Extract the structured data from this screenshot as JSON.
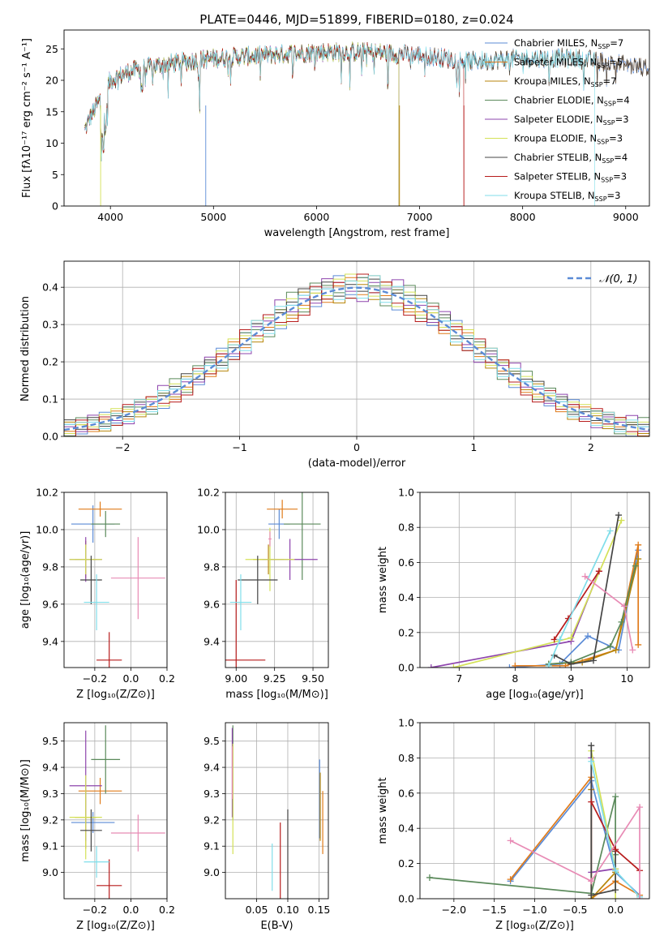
{
  "chart_data": [
    {
      "id": "spectrum",
      "type": "line",
      "title": "PLATE=0446, MJD=51899, FIBERID=0180, z=0.024",
      "xlabel": "wavelength [Angstrom, rest frame]",
      "ylabel": "Flux [fλ10⁻¹⁷ erg cm⁻² s⁻¹ A⁻¹]",
      "xlim": [
        3550,
        9230
      ],
      "ylim": [
        0,
        28
      ],
      "xticks": [
        4000,
        5000,
        6000,
        7000,
        8000,
        9000
      ],
      "yticks": [
        0,
        5,
        10,
        15,
        20,
        25
      ],
      "legend_position": "top-right",
      "shape": {
        "x": [
          3750,
          3800,
          3900,
          4000,
          4200,
          4500,
          5000,
          5500,
          6000,
          6500,
          7000,
          7500,
          8000,
          8500,
          9000,
          9200
        ],
        "y": [
          12,
          14,
          17,
          20,
          21.5,
          22.5,
          23.5,
          24,
          24.5,
          24.5,
          24,
          23,
          23.5,
          23.5,
          22.5,
          22
        ]
      },
      "series": [
        {
          "name": "Chabrier MILES, N",
          "sub": "SSP",
          "suffix": "=7",
          "color": "#5b8bd6",
          "x_end": 9230
        },
        {
          "name": "Salpeter MILES, N",
          "sub": "SSP",
          "suffix": "=5",
          "color": "#e07b1a",
          "x_end": 9230
        },
        {
          "name": "Kroupa MILES, N",
          "sub": "SSP",
          "suffix": "=7",
          "color": "#b8860b",
          "x_end": 6800
        },
        {
          "name": "Chabrier ELODIE, N",
          "sub": "SSP",
          "suffix": "=4",
          "color": "#5b8a5b",
          "x_end": 6800
        },
        {
          "name": "Salpeter ELODIE, N",
          "sub": "SSP",
          "suffix": "=3",
          "color": "#8e44ad",
          "x_end": 6800
        },
        {
          "name": "Kroupa ELODIE, N",
          "sub": "SSP",
          "suffix": "=3",
          "color": "#d4e157",
          "x_end": 6800
        },
        {
          "name": "Chabrier STELIB, N",
          "sub": "SSP",
          "suffix": "=4",
          "color": "#444444",
          "x_end": 9230
        },
        {
          "name": "Salpeter STELIB, N",
          "sub": "SSP",
          "suffix": "=3",
          "color": "#b71c1c",
          "x_end": 7430
        },
        {
          "name": "Kroupa STELIB, N",
          "sub": "SSP",
          "suffix": "=3",
          "color": "#80deea",
          "x_end": 8700
        }
      ]
    },
    {
      "id": "residuals",
      "type": "bar",
      "xlabel": "(data-model)/error",
      "ylabel": "Normed distribution",
      "xlim": [
        -2.5,
        2.5
      ],
      "ylim": [
        0,
        0.47
      ],
      "xticks": [
        -2,
        -1,
        0,
        1,
        2
      ],
      "xtick_labels": [
        "−2",
        "−1",
        "0",
        "1",
        "2"
      ],
      "yticks": [
        0.0,
        0.1,
        0.2,
        0.3,
        0.4
      ],
      "bin_width": 0.1,
      "legend_label": "𝒩(0, 1)",
      "legend_position": "top-right",
      "deviations": [
        [
          0.02,
          -0.03,
          0.01,
          0.04,
          -0.02,
          0.03,
          -0.01,
          0.02,
          -0.04,
          0.01
        ],
        [
          -0.01,
          0.02,
          -0.03,
          0.01,
          0.03,
          -0.02,
          0.04,
          -0.01,
          0.02,
          -0.03
        ],
        [
          0.03,
          0.01,
          -0.02,
          -0.04,
          0.02,
          0.01,
          -0.03,
          0.03,
          0.01,
          -0.02
        ],
        [
          -0.03,
          0.04,
          0.02,
          -0.01,
          -0.03,
          0.03,
          0.01,
          -0.04,
          0.02,
          0.05
        ],
        [
          0.01,
          -0.02,
          0.04,
          0.02,
          -0.01,
          -0.04,
          0.02,
          0.01,
          0.05,
          -0.01
        ],
        [
          -0.02,
          0.01,
          -0.01,
          0.03,
          0.04,
          0.02,
          -0.02,
          0.02,
          -0.03,
          0.03
        ],
        [
          0.04,
          -0.01,
          0.03,
          -0.02,
          0.01,
          -0.01,
          0.03,
          -0.02,
          0.01,
          0.02
        ],
        [
          -0.04,
          0.03,
          -0.02,
          0.02,
          -0.03,
          0.04,
          -0.01,
          0.03,
          -0.02,
          -0.04
        ],
        [
          0.02,
          0.02,
          0.01,
          -0.03,
          0.02,
          -0.03,
          0.04,
          -0.03,
          0.03,
          0.01
        ]
      ]
    },
    {
      "id": "age-vs-Z",
      "type": "scatter",
      "xlabel": "Z [log₁₀(Z/Z⊙)]",
      "ylabel": "age  [log₁₀(age/yr)]",
      "xlim": [
        -0.37,
        0.2
      ],
      "ylim": [
        9.26,
        10.2
      ],
      "xticks": [
        -0.2,
        0.0,
        0.2
      ],
      "xtick_labels": [
        "−0.2",
        "0.0",
        "0.2"
      ],
      "yticks": [
        9.4,
        9.6,
        9.8,
        10.0,
        10.2
      ],
      "points": [
        {
          "x": -0.21,
          "xerr": 0.12,
          "y": 10.03,
          "yerr": 0.1,
          "color": "#5b8bd6"
        },
        {
          "x": -0.17,
          "xerr": 0.12,
          "y": 10.11,
          "yerr": 0.04,
          "color": "#e07b1a"
        },
        {
          "x": -0.25,
          "xerr": 0.06,
          "y": 9.84,
          "yerr": 0.1,
          "color": "#b8860b"
        },
        {
          "x": -0.14,
          "xerr": 0.08,
          "y": 10.03,
          "yerr": 0.07,
          "color": "#5b8a5b"
        },
        {
          "x": -0.25,
          "xerr": 0.09,
          "y": 9.84,
          "yerr": 0.12,
          "color": "#8e44ad"
        },
        {
          "x": -0.25,
          "xerr": 0.09,
          "y": 9.84,
          "yerr": 0.08,
          "color": "#d4e157"
        },
        {
          "x": -0.22,
          "xerr": 0.06,
          "y": 9.73,
          "yerr": 0.13,
          "color": "#444444"
        },
        {
          "x": -0.12,
          "xerr": 0.07,
          "y": 9.3,
          "yerr": 0.15,
          "color": "#b71c1c"
        },
        {
          "x": -0.19,
          "xerr": 0.07,
          "y": 9.61,
          "yerr": 0.15,
          "color": "#80deea"
        },
        {
          "x": 0.04,
          "xerr": 0.15,
          "y": 9.74,
          "yerr": 0.22,
          "color": "#e88bb5"
        }
      ]
    },
    {
      "id": "age-vs-mass",
      "type": "scatter",
      "xlabel": "mass [log₁₀(M/M⊙)]",
      "xlim": [
        8.93,
        9.6
      ],
      "ylim": [
        9.26,
        10.2
      ],
      "xticks": [
        9.0,
        9.25,
        9.5
      ],
      "xtick_labels": [
        "9.00",
        "9.25",
        "9.50"
      ],
      "yticks": [
        9.4,
        9.6,
        9.8,
        10.0,
        10.2
      ],
      "points": [
        {
          "x": 9.28,
          "xerr": 0.07,
          "y": 10.03,
          "yerr": 0.08,
          "color": "#5b8bd6"
        },
        {
          "x": 9.3,
          "xerr": 0.1,
          "y": 10.11,
          "yerr": 0.05,
          "color": "#e07b1a"
        },
        {
          "x": 9.21,
          "xerr": 0.1,
          "y": 9.84,
          "yerr": 0.08,
          "color": "#b8860b"
        },
        {
          "x": 9.43,
          "xerr": 0.12,
          "y": 10.03,
          "yerr": 0.3,
          "color": "#5b8a5b"
        },
        {
          "x": 9.35,
          "xerr": 0.18,
          "y": 9.84,
          "yerr": 0.11,
          "color": "#8e44ad"
        },
        {
          "x": 9.22,
          "xerr": 0.16,
          "y": 9.84,
          "yerr": 0.17,
          "color": "#d4e157"
        },
        {
          "x": 9.14,
          "xerr": 0.13,
          "y": 9.73,
          "yerr": 0.13,
          "color": "#444444"
        },
        {
          "x": 9.0,
          "xerr": 0.19,
          "y": 9.3,
          "yerr": 0.43,
          "color": "#b71c1c"
        },
        {
          "x": 9.03,
          "xerr": 0.07,
          "y": 9.61,
          "yerr": 0.15,
          "color": "#80deea"
        },
        {
          "x": 9.22,
          "xerr": 0.01,
          "y": 9.95,
          "yerr": 0.04,
          "color": "#e88bb5"
        }
      ]
    },
    {
      "id": "massweight-vs-age",
      "type": "line",
      "xlabel": "age  [log₁₀(age/yr)]",
      "ylabel": "mass weight",
      "xlim": [
        6.3,
        10.4
      ],
      "ylim": [
        0,
        1.0
      ],
      "xticks": [
        7,
        8,
        9,
        10
      ],
      "yticks": [
        0.0,
        0.2,
        0.4,
        0.6,
        0.8,
        1.0
      ],
      "series": [
        {
          "color": "#5b8bd6",
          "x": [
            7.9,
            8.8,
            9.3,
            9.85,
            10.2
          ],
          "y": [
            0.0,
            0.02,
            0.18,
            0.1,
            0.67
          ]
        },
        {
          "color": "#e07b1a",
          "x": [
            8.0,
            8.9,
            9.8,
            10.2,
            10.2
          ],
          "y": [
            0.01,
            0.01,
            0.1,
            0.7,
            0.13
          ]
        },
        {
          "color": "#b8860b",
          "x": [
            8.6,
            9.2,
            9.8,
            10.2
          ],
          "y": [
            0.02,
            0.03,
            0.1,
            0.62
          ]
        },
        {
          "color": "#5b8a5b",
          "x": [
            8.6,
            9.0,
            9.7,
            9.9,
            10.15
          ],
          "y": [
            0.02,
            0.03,
            0.12,
            0.26,
            0.58
          ]
        },
        {
          "color": "#8e44ad",
          "x": [
            6.5,
            9.0,
            9.5
          ],
          "y": [
            0.0,
            0.15,
            0.55
          ]
        },
        {
          "color": "#d4e157",
          "x": [
            6.9,
            9.0,
            9.9
          ],
          "y": [
            0.0,
            0.17,
            0.84
          ]
        },
        {
          "color": "#444444",
          "x": [
            8.7,
            9.0,
            9.4,
            9.85
          ],
          "y": [
            0.07,
            0.02,
            0.04,
            0.87
          ]
        },
        {
          "color": "#b71c1c",
          "x": [
            8.7,
            8.95,
            9.5
          ],
          "y": [
            0.16,
            0.28,
            0.55
          ]
        },
        {
          "color": "#80deea",
          "x": [
            8.6,
            8.8,
            9.7
          ],
          "y": [
            0.01,
            0.16,
            0.78
          ]
        },
        {
          "color": "#e88bb5",
          "x": [
            9.25,
            9.95,
            10.1
          ],
          "y": [
            0.52,
            0.35,
            0.1
          ]
        }
      ]
    },
    {
      "id": "mass-vs-Z",
      "type": "scatter",
      "xlabel": "Z [log₁₀(Z/Z⊙)]",
      "ylabel": "mass [log₁₀(M/M⊙)]",
      "xlim": [
        -0.37,
        0.2
      ],
      "ylim": [
        8.9,
        9.57
      ],
      "xticks": [
        -0.2,
        0.0,
        0.2
      ],
      "xtick_labels": [
        "−0.2",
        "0.0",
        "0.2"
      ],
      "yticks": [
        9.0,
        9.1,
        9.2,
        9.3,
        9.4,
        9.5
      ],
      "points": [
        {
          "x": -0.21,
          "xerr": 0.12,
          "y": 9.19,
          "yerr": 0.04,
          "color": "#5b8bd6"
        },
        {
          "x": -0.17,
          "xerr": 0.12,
          "y": 9.31,
          "yerr": 0.05,
          "color": "#e07b1a"
        },
        {
          "x": -0.25,
          "xerr": 0.06,
          "y": 9.21,
          "yerr": 0.12,
          "color": "#b8860b"
        },
        {
          "x": -0.14,
          "xerr": 0.08,
          "y": 9.43,
          "yerr": 0.13,
          "color": "#5b8a5b"
        },
        {
          "x": -0.25,
          "xerr": 0.09,
          "y": 9.33,
          "yerr": 0.21,
          "color": "#8e44ad"
        },
        {
          "x": -0.25,
          "xerr": 0.09,
          "y": 9.21,
          "yerr": 0.16,
          "color": "#d4e157"
        },
        {
          "x": -0.22,
          "xerr": 0.06,
          "y": 9.16,
          "yerr": 0.08,
          "color": "#444444"
        },
        {
          "x": -0.12,
          "xerr": 0.07,
          "y": 8.95,
          "yerr": 0.1,
          "color": "#b71c1c"
        },
        {
          "x": -0.19,
          "xerr": 0.07,
          "y": 9.04,
          "yerr": 0.06,
          "color": "#80deea"
        },
        {
          "x": 0.04,
          "xerr": 0.15,
          "y": 9.15,
          "yerr": 0.07,
          "color": "#e88bb5"
        }
      ]
    },
    {
      "id": "mass-vs-EBV",
      "type": "scatter",
      "xlabel": "E(B-V)",
      "xlim": [
        0.0,
        0.165
      ],
      "ylim": [
        8.9,
        9.57
      ],
      "xticks": [
        0.05,
        0.1,
        0.15
      ],
      "xtick_labels": [
        "0.05",
        "0.10",
        "0.15"
      ],
      "yticks": [
        9.0,
        9.1,
        9.2,
        9.3,
        9.4,
        9.5
      ],
      "points": [
        {
          "x": 0.151,
          "y": 9.28,
          "yerr": 0.15,
          "color": "#5b8bd6"
        },
        {
          "x": 0.156,
          "y": 9.19,
          "yerr": 0.12,
          "color": "#e07b1a"
        },
        {
          "x": 0.152,
          "y": 9.25,
          "yerr": 0.13,
          "color": "#b8860b"
        },
        {
          "x": 0.012,
          "y": 9.38,
          "yerr": 0.18,
          "color": "#5b8a5b"
        },
        {
          "x": 0.011,
          "y": 9.38,
          "yerr": 0.17,
          "color": "#8e44ad"
        },
        {
          "x": 0.012,
          "y": 9.28,
          "yerr": 0.21,
          "color": "#d4e157"
        },
        {
          "x": 0.1,
          "y": 9.06,
          "yerr": 0.18,
          "color": "#444444"
        },
        {
          "x": 0.088,
          "y": 9.02,
          "yerr": 0.17,
          "color": "#b71c1c"
        },
        {
          "x": 0.075,
          "y": 9.02,
          "yerr": 0.09,
          "color": "#80deea"
        },
        {
          "x": 0.011,
          "y": 9.38,
          "yerr": 0.1,
          "color": "#e88bb5"
        }
      ]
    },
    {
      "id": "massweight-vs-Z",
      "type": "line",
      "xlabel": "Z [log₁₀(Z/Z⊙)]",
      "ylabel": "mass weight",
      "xlim": [
        -2.42,
        0.42
      ],
      "ylim": [
        0,
        1.0
      ],
      "xticks": [
        -2.0,
        -1.5,
        -1.0,
        -0.5,
        0.0
      ],
      "xtick_labels": [
        "−2.0",
        "−1.5",
        "−1.0",
        "−0.5",
        "0.0"
      ],
      "yticks": [
        0.0,
        0.2,
        0.4,
        0.6,
        0.8,
        1.0
      ],
      "series": [
        {
          "color": "#5b8bd6",
          "x": [
            -1.3,
            -0.3,
            0.0,
            0.3
          ],
          "y": [
            0.1,
            0.67,
            0.15,
            0.02
          ]
        },
        {
          "color": "#e07b1a",
          "x": [
            -1.3,
            -0.3,
            -0.3,
            0.0,
            0.3
          ],
          "y": [
            0.11,
            0.69,
            0.0,
            0.1,
            0.02
          ]
        },
        {
          "color": "#b8860b",
          "x": [
            -0.3,
            -0.3,
            0.0
          ],
          "y": [
            0.62,
            0.0,
            0.15
          ]
        },
        {
          "color": "#5b8a5b",
          "x": [
            -2.3,
            -0.3,
            0.0,
            0.0
          ],
          "y": [
            0.12,
            0.03,
            0.58,
            0.25
          ]
        },
        {
          "color": "#8e44ad",
          "x": [
            -0.3,
            -0.3,
            0.0
          ],
          "y": [
            0.8,
            0.15,
            0.17
          ]
        },
        {
          "color": "#d4e157",
          "x": [
            -0.3,
            0.0,
            0.0
          ],
          "y": [
            0.84,
            0.17,
            0.0
          ]
        },
        {
          "color": "#444444",
          "x": [
            -0.3,
            -0.3,
            0.0,
            0.0
          ],
          "y": [
            0.87,
            0.02,
            0.05,
            0.27
          ]
        },
        {
          "color": "#b71c1c",
          "x": [
            -0.3,
            0.0,
            0.3
          ],
          "y": [
            0.55,
            0.28,
            0.16
          ]
        },
        {
          "color": "#80deea",
          "x": [
            -0.3,
            0.0,
            0.3
          ],
          "y": [
            0.78,
            0.16,
            0.01
          ]
        },
        {
          "color": "#e88bb5",
          "x": [
            -1.3,
            -0.3,
            0.3,
            0.3
          ],
          "y": [
            0.33,
            0.1,
            0.52,
            0.0
          ]
        }
      ]
    }
  ]
}
